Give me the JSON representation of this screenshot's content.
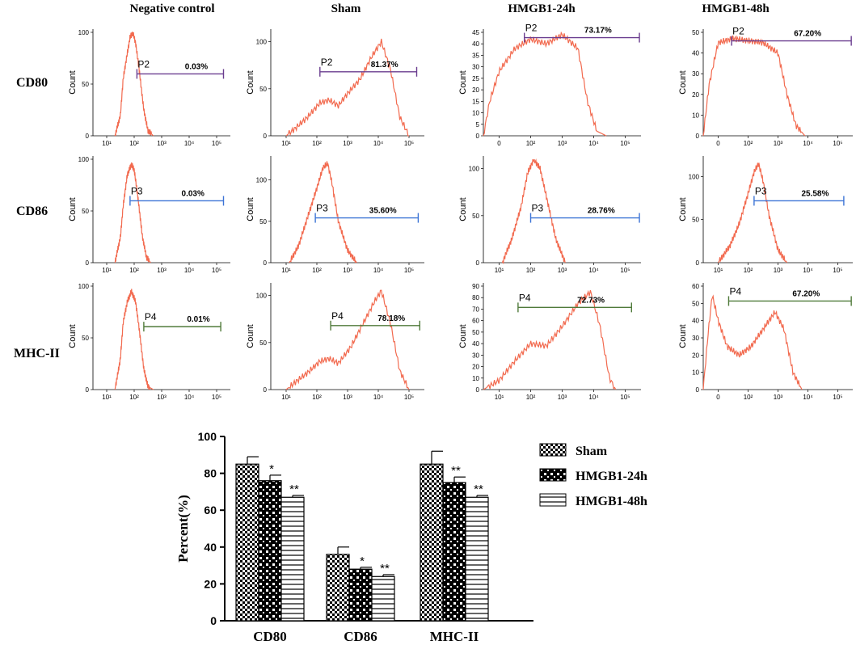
{
  "columns": [
    "Negative control",
    "Sham",
    "HMGB1-24h",
    "HMGB1-48h"
  ],
  "rows": [
    "CD80",
    "CD86",
    "MHC-II"
  ],
  "count_label": "Count",
  "colors": {
    "histogram": "#f26a4f",
    "gate_CD80": "#6a3d8f",
    "gate_CD86": "#3d74d6",
    "gate_MHC": "#4f7a3a",
    "axis": "#000000"
  },
  "chart_data": [
    {
      "type": "histogram-panels",
      "title": "Flow cytometry histograms",
      "panels": [
        {
          "row": "CD80",
          "column": "Negative control",
          "yticks": [
            0,
            50,
            100
          ],
          "ymax": 100,
          "xticks": [
            "10¹",
            "10²",
            "10³",
            "10⁴",
            "10⁵"
          ],
          "gate": "P2",
          "percent": "0.03%",
          "profile": [
            [
              0.8,
              0
            ],
            [
              1.0,
              20
            ],
            [
              1.1,
              55
            ],
            [
              1.25,
              80
            ],
            [
              1.35,
              95
            ],
            [
              1.45,
              100
            ],
            [
              1.55,
              90
            ],
            [
              1.7,
              60
            ],
            [
              1.85,
              25
            ],
            [
              2.0,
              5
            ],
            [
              2.2,
              0
            ]
          ]
        },
        {
          "row": "CD80",
          "column": "Sham",
          "yticks": [
            0,
            50,
            100
          ],
          "ymax": 110,
          "xticks": [
            "10¹",
            "10²",
            "10³",
            "10⁴",
            "10⁵"
          ],
          "gate": "P2",
          "percent": "81.37%",
          "profile": [
            [
              0.5,
              0
            ],
            [
              0.8,
              8
            ],
            [
              1.2,
              20
            ],
            [
              1.6,
              35
            ],
            [
              1.9,
              38
            ],
            [
              2.2,
              32
            ],
            [
              2.5,
              45
            ],
            [
              2.9,
              60
            ],
            [
              3.3,
              85
            ],
            [
              3.6,
              100
            ],
            [
              3.9,
              70
            ],
            [
              4.2,
              20
            ],
            [
              4.5,
              0
            ]
          ]
        },
        {
          "row": "CD80",
          "column": "HMGB1-24h",
          "yticks": [
            0,
            5,
            10,
            15,
            20,
            25,
            30,
            35,
            40,
            45
          ],
          "ymax": 45,
          "xticks": [
            "0",
            "10²",
            "10³",
            "10⁴",
            "10⁵"
          ],
          "gate": "P2",
          "percent": "73.17%",
          "profile": [
            [
              0.0,
              0
            ],
            [
              0.2,
              15
            ],
            [
              0.5,
              28
            ],
            [
              1.0,
              38
            ],
            [
              1.5,
              42
            ],
            [
              2.0,
              40
            ],
            [
              2.5,
              44
            ],
            [
              3.0,
              38
            ],
            [
              3.3,
              15
            ],
            [
              3.6,
              2
            ],
            [
              3.9,
              0
            ]
          ]
        },
        {
          "row": "CD80",
          "column": "HMGB1-48h",
          "yticks": [
            0,
            10,
            20,
            30,
            40,
            50
          ],
          "ymax": 50,
          "xticks": [
            "0",
            "10²",
            "10³",
            "10⁴",
            "10⁵"
          ],
          "gate": "P2",
          "percent": "67.20%",
          "profile": [
            [
              0.0,
              0
            ],
            [
              0.2,
              25
            ],
            [
              0.5,
              45
            ],
            [
              1.0,
              47
            ],
            [
              1.5,
              46
            ],
            [
              2.0,
              45
            ],
            [
              2.5,
              40
            ],
            [
              2.8,
              20
            ],
            [
              3.1,
              5
            ],
            [
              3.4,
              0
            ]
          ]
        },
        {
          "row": "CD86",
          "column": "Negative control",
          "yticks": [
            0,
            50,
            100
          ],
          "ymax": 100,
          "xticks": [
            "10¹",
            "10²",
            "10³",
            "10⁴",
            "10⁵"
          ],
          "gate": "P3",
          "percent": "0.03%",
          "profile": [
            [
              0.8,
              0
            ],
            [
              1.0,
              25
            ],
            [
              1.1,
              55
            ],
            [
              1.25,
              85
            ],
            [
              1.4,
              95
            ],
            [
              1.5,
              90
            ],
            [
              1.65,
              60
            ],
            [
              1.8,
              25
            ],
            [
              1.95,
              5
            ],
            [
              2.1,
              0
            ]
          ]
        },
        {
          "row": "CD86",
          "column": "Sham",
          "yticks": [
            0,
            50,
            100
          ],
          "ymax": 125,
          "xticks": [
            "10¹",
            "10²",
            "10³",
            "10⁴",
            "10⁵"
          ],
          "gate": "P3",
          "percent": "35.60%",
          "profile": [
            [
              0.6,
              0
            ],
            [
              0.9,
              20
            ],
            [
              1.2,
              55
            ],
            [
              1.5,
              90
            ],
            [
              1.7,
              115
            ],
            [
              1.85,
              120
            ],
            [
              2.0,
              95
            ],
            [
              2.2,
              50
            ],
            [
              2.5,
              15
            ],
            [
              2.8,
              0
            ]
          ]
        },
        {
          "row": "CD86",
          "column": "HMGB1-24h",
          "yticks": [
            0,
            50,
            100
          ],
          "ymax": 110,
          "xticks": [
            "10¹",
            "10²",
            "10³",
            "10⁴",
            "10⁵"
          ],
          "gate": "P3",
          "percent": "28.76%",
          "profile": [
            [
              0.6,
              0
            ],
            [
              0.9,
              25
            ],
            [
              1.2,
              60
            ],
            [
              1.4,
              95
            ],
            [
              1.6,
              110
            ],
            [
              1.8,
              100
            ],
            [
              2.0,
              70
            ],
            [
              2.3,
              25
            ],
            [
              2.6,
              0
            ]
          ]
        },
        {
          "row": "CD86",
          "column": "HMGB1-48h",
          "yticks": [
            0,
            50,
            100
          ],
          "ymax": 120,
          "xticks": [
            "10¹",
            "10²",
            "10³",
            "10⁴",
            "10⁵"
          ],
          "gate": "P3",
          "percent": "25.58%",
          "profile": [
            [
              0.5,
              0
            ],
            [
              0.9,
              20
            ],
            [
              1.2,
              45
            ],
            [
              1.5,
              80
            ],
            [
              1.7,
              105
            ],
            [
              1.85,
              115
            ],
            [
              2.0,
              95
            ],
            [
              2.2,
              55
            ],
            [
              2.5,
              15
            ],
            [
              2.8,
              0
            ]
          ]
        },
        {
          "row": "MHC-II",
          "column": "Negative control",
          "yticks": [
            0,
            50,
            100
          ],
          "ymax": 100,
          "xticks": [
            "10¹",
            "10²",
            "10³",
            "10⁴",
            "10⁵"
          ],
          "gate": "P4",
          "percent": "0.01%",
          "profile": [
            [
              0.8,
              0
            ],
            [
              1.0,
              30
            ],
            [
              1.1,
              65
            ],
            [
              1.25,
              85
            ],
            [
              1.4,
              95
            ],
            [
              1.55,
              85
            ],
            [
              1.7,
              55
            ],
            [
              1.85,
              20
            ],
            [
              2.0,
              3
            ],
            [
              2.2,
              0
            ]
          ]
        },
        {
          "row": "MHC-II",
          "column": "Sham",
          "yticks": [
            0,
            50,
            100
          ],
          "ymax": 110,
          "xticks": [
            "10¹",
            "10²",
            "10³",
            "10⁴",
            "10⁵"
          ],
          "gate": "P4",
          "percent": "78.18%",
          "profile": [
            [
              0.5,
              0
            ],
            [
              0.8,
              8
            ],
            [
              1.2,
              18
            ],
            [
              1.6,
              30
            ],
            [
              1.9,
              33
            ],
            [
              2.2,
              28
            ],
            [
              2.6,
              45
            ],
            [
              3.0,
              70
            ],
            [
              3.4,
              95
            ],
            [
              3.6,
              105
            ],
            [
              3.9,
              70
            ],
            [
              4.2,
              20
            ],
            [
              4.5,
              0
            ]
          ]
        },
        {
          "row": "MHC-II",
          "column": "HMGB1-24h",
          "yticks": [
            0,
            10,
            20,
            30,
            40,
            50,
            60,
            70,
            80,
            90
          ],
          "ymax": 90,
          "xticks": [
            "10¹",
            "10²",
            "10³",
            "10⁴",
            "10⁵"
          ],
          "gate": "P4",
          "percent": "72.73%",
          "profile": [
            [
              0.0,
              0
            ],
            [
              0.5,
              8
            ],
            [
              1.0,
              25
            ],
            [
              1.5,
              40
            ],
            [
              2.0,
              38
            ],
            [
              2.5,
              55
            ],
            [
              3.0,
              75
            ],
            [
              3.4,
              85
            ],
            [
              3.7,
              55
            ],
            [
              4.0,
              10
            ],
            [
              4.2,
              0
            ]
          ]
        },
        {
          "row": "MHC-II",
          "column": "HMGB1-48h",
          "yticks": [
            0,
            10,
            20,
            30,
            40,
            50,
            60
          ],
          "ymax": 60,
          "xticks": [
            "0",
            "10²",
            "10³",
            "10⁴",
            "10⁵"
          ],
          "gate": "P4",
          "percent": "67.20%",
          "profile": [
            [
              0.0,
              0
            ],
            [
              0.15,
              30
            ],
            [
              0.3,
              55
            ],
            [
              0.5,
              40
            ],
            [
              0.8,
              25
            ],
            [
              1.2,
              20
            ],
            [
              1.6,
              25
            ],
            [
              2.0,
              35
            ],
            [
              2.4,
              45
            ],
            [
              2.7,
              35
            ],
            [
              3.0,
              10
            ],
            [
              3.3,
              0
            ]
          ]
        }
      ]
    },
    {
      "type": "bar",
      "title": "",
      "xlabel": "",
      "ylabel": "Percent(%)",
      "ylim": [
        0,
        100
      ],
      "yticks": [
        0,
        20,
        40,
        60,
        80,
        100
      ],
      "categories": [
        "CD80",
        "CD86",
        "MHC-II"
      ],
      "series": [
        {
          "name": "Sham",
          "values": [
            85,
            36,
            85
          ],
          "errors": [
            4,
            4,
            7
          ],
          "stars": [
            "",
            "",
            ""
          ]
        },
        {
          "name": "HMGB1-24h",
          "values": [
            76,
            28,
            75
          ],
          "errors": [
            3,
            1,
            3
          ],
          "stars": [
            "*",
            "*",
            "**"
          ]
        },
        {
          "name": "HMGB1-48h",
          "values": [
            67,
            24,
            67
          ],
          "errors": [
            1,
            1,
            1
          ],
          "stars": [
            "**",
            "**",
            "**"
          ]
        }
      ],
      "legend_position": "right"
    }
  ]
}
